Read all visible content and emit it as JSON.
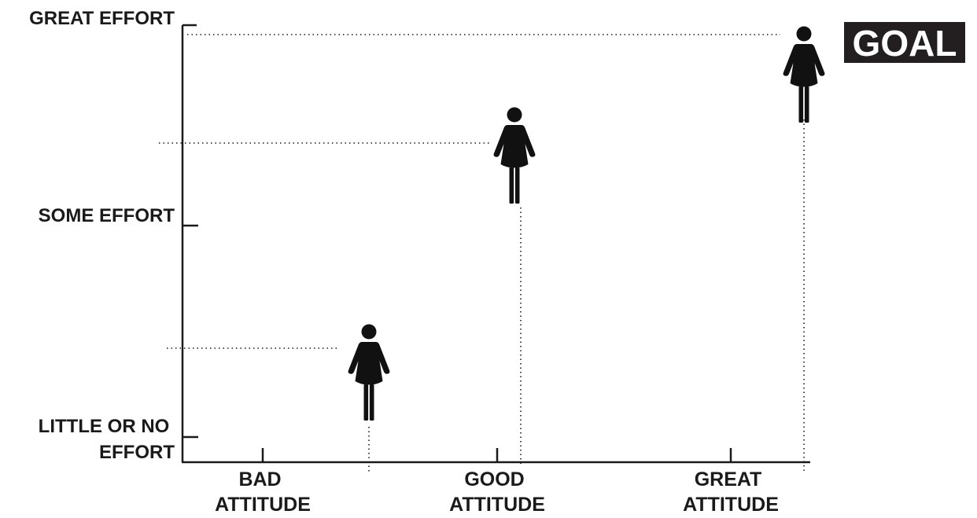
{
  "y_levels": [
    {
      "id": "great-effort",
      "lines": [
        "GREAT EFFORT"
      ]
    },
    {
      "id": "some-effort",
      "lines": [
        "SOME EFFORT"
      ]
    },
    {
      "id": "little-effort",
      "lines": [
        "LITTLE OR NO",
        "EFFORT"
      ]
    }
  ],
  "x_levels": [
    {
      "id": "bad-attitude",
      "lines": [
        "BAD",
        "ATTITUDE"
      ]
    },
    {
      "id": "good-attitude",
      "lines": [
        "GOOD",
        "ATTITUDE"
      ]
    },
    {
      "id": "great-attitude",
      "lines": [
        "GREAT",
        "ATTITUDE"
      ]
    }
  ],
  "goal": {
    "label": "GOAL"
  },
  "figure_icon": "woman-icon",
  "colors": {
    "ink": "#1a1a1a",
    "goal_bg": "#231f20",
    "goal_text": "#ffffff"
  }
}
